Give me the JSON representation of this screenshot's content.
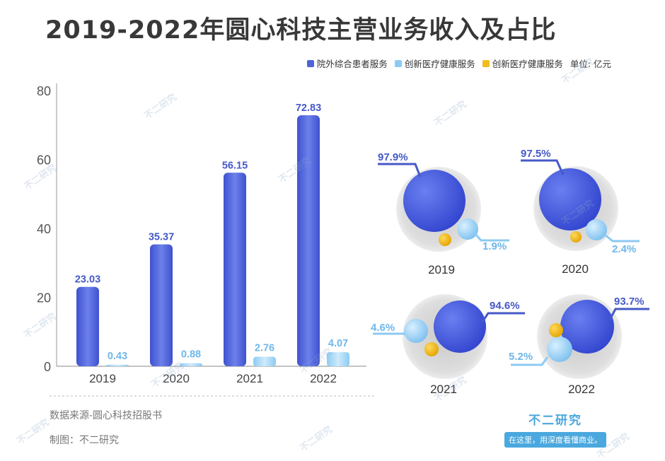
{
  "title": "2019-2022年圆心科技主营业务收入及占比",
  "legend": {
    "items": [
      {
        "label": "院外综合患者服务",
        "color": "#4f63d8"
      },
      {
        "label": "创新医疗健康服务",
        "color": "#8dcaf2"
      },
      {
        "label": "创新医疗健康服务",
        "color": "#f2bc1c"
      }
    ],
    "unit": "单位: 亿元"
  },
  "footer": {
    "source": "数据来源-圆心科技招股书",
    "made_by": "制图：不二研究"
  },
  "brand": {
    "name": "不二研究",
    "slogan": "在这里，用深度看懂商业。"
  },
  "watermark": "不二研究",
  "colors": {
    "bar_primary": "#4f63d8",
    "bar_secondary": "#a7d8f7",
    "label_primary": "#4659c7",
    "label_secondary": "#6fb7ea",
    "pie_bg": "#d9d9d9",
    "gold": "#f2bc1c"
  },
  "chart_data": [
    {
      "type": "bar",
      "categories": [
        "2019",
        "2020",
        "2021",
        "2022"
      ],
      "series": [
        {
          "name": "院外综合患者服务",
          "values": [
            23.03,
            35.37,
            56.15,
            72.83
          ]
        },
        {
          "name": "创新医疗健康服务",
          "values": [
            0.43,
            0.88,
            2.76,
            4.07
          ]
        }
      ],
      "ylim": [
        0,
        80
      ],
      "yticks": [
        0,
        20,
        40,
        60,
        80
      ],
      "xlabel": "",
      "ylabel": ""
    },
    {
      "type": "pie",
      "panels": [
        {
          "year": "2019",
          "primary_label": "97.9%",
          "secondary_label": "1.9%"
        },
        {
          "year": "2020",
          "primary_label": "97.5%",
          "secondary_label": "2.4%"
        },
        {
          "year": "2021",
          "primary_label": "94.6%",
          "secondary_label": "4.6%"
        },
        {
          "year": "2022",
          "primary_label": "93.7%",
          "secondary_label": "5.2%"
        }
      ]
    }
  ]
}
